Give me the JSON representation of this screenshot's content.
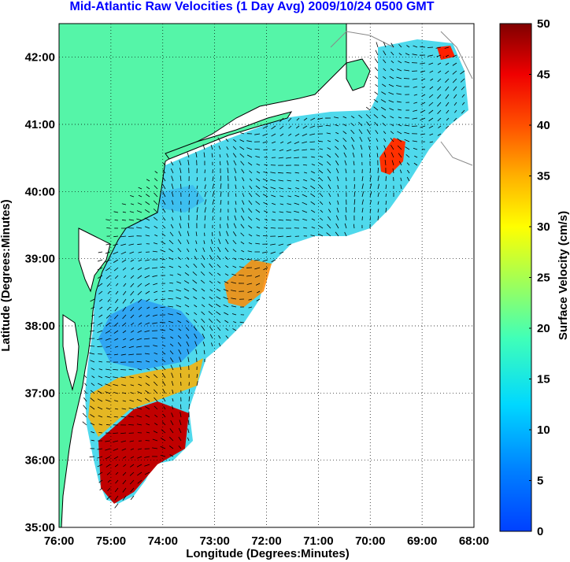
{
  "title": "Mid-Atlantic Raw Velocities (1 Day Avg) 2009/10/24 0500 GMT",
  "map": {
    "xlabel": "Longitude (Degrees:Minutes)",
    "ylabel": "Latitude (Degrees:Minutes)",
    "x_ticks": [
      "76:00",
      "75:00",
      "74:00",
      "73:00",
      "72:00",
      "71:00",
      "70:00",
      "69:00",
      "68:00"
    ],
    "y_ticks": [
      "35:00",
      "36:00",
      "37:00",
      "38:00",
      "39:00",
      "40:00",
      "41:00",
      "42:00"
    ],
    "lon_range": [
      -76,
      -68
    ],
    "lat_range": [
      35,
      42.5
    ],
    "grid": "dotted",
    "land_color": "#55f5a8"
  },
  "colorbar": {
    "label": "Surface Velocity (cm/s)",
    "ticks": [
      "0",
      "5",
      "10",
      "15",
      "20",
      "25",
      "30",
      "35",
      "40",
      "45",
      "50"
    ],
    "range": [
      0,
      50
    ],
    "colormap": "jet"
  }
}
